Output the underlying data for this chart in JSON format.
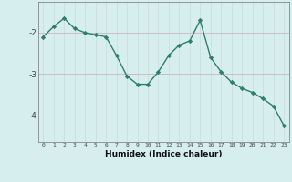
{
  "x": [
    0,
    1,
    2,
    3,
    4,
    5,
    6,
    7,
    8,
    9,
    10,
    11,
    12,
    13,
    14,
    15,
    16,
    17,
    18,
    19,
    20,
    21,
    22,
    23
  ],
  "y": [
    -2.1,
    -1.85,
    -1.65,
    -1.9,
    -2.0,
    -2.05,
    -2.1,
    -2.55,
    -3.05,
    -3.25,
    -3.25,
    -2.95,
    -2.55,
    -2.3,
    -2.2,
    -1.7,
    -2.6,
    -2.95,
    -3.2,
    -3.35,
    -3.45,
    -3.6,
    -3.78,
    -4.25
  ],
  "line_color": "#2e7d6e",
  "marker": "D",
  "marker_size": 2.2,
  "bg_color": "#d6eeee",
  "grid_color_v": "#c8dede",
  "grid_color_h": "#c8b8b8",
  "tick_color": "#444444",
  "xlabel": "Humidex (Indice chaleur)",
  "yticks": [
    -4,
    -3,
    -2
  ],
  "ylim": [
    -4.65,
    -1.25
  ],
  "xlim": [
    -0.5,
    23.5
  ],
  "line_width": 1.0
}
